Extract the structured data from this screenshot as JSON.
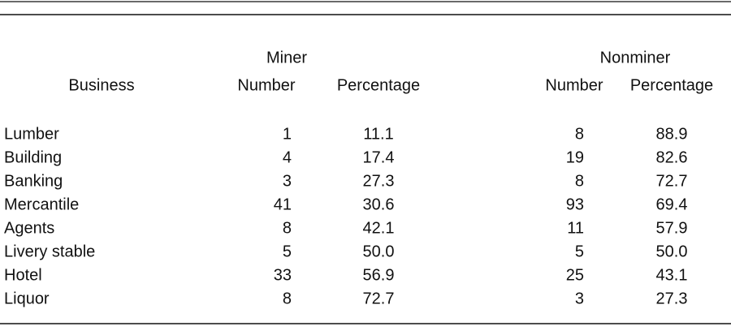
{
  "table": {
    "group_headers": [
      "Miner",
      "Nonminer"
    ],
    "columns": [
      "Business",
      "Number",
      "Percentage",
      "Number",
      "Percentage"
    ],
    "rows": [
      [
        "Lumber",
        "1",
        "11.1",
        "8",
        "88.9"
      ],
      [
        "Building",
        "4",
        "17.4",
        "19",
        "82.6"
      ],
      [
        "Banking",
        "3",
        "27.3",
        "8",
        "72.7"
      ],
      [
        "Mercantile",
        "41",
        "30.6",
        "93",
        "69.4"
      ],
      [
        "Agents",
        "8",
        "42.1",
        "11",
        "57.9"
      ],
      [
        "Livery stable",
        "5",
        "50.0",
        "5",
        "50.0"
      ],
      [
        "Hotel",
        "33",
        "56.9",
        "25",
        "43.1"
      ],
      [
        "Liquor",
        "8",
        "72.7",
        "3",
        "27.3"
      ]
    ]
  }
}
